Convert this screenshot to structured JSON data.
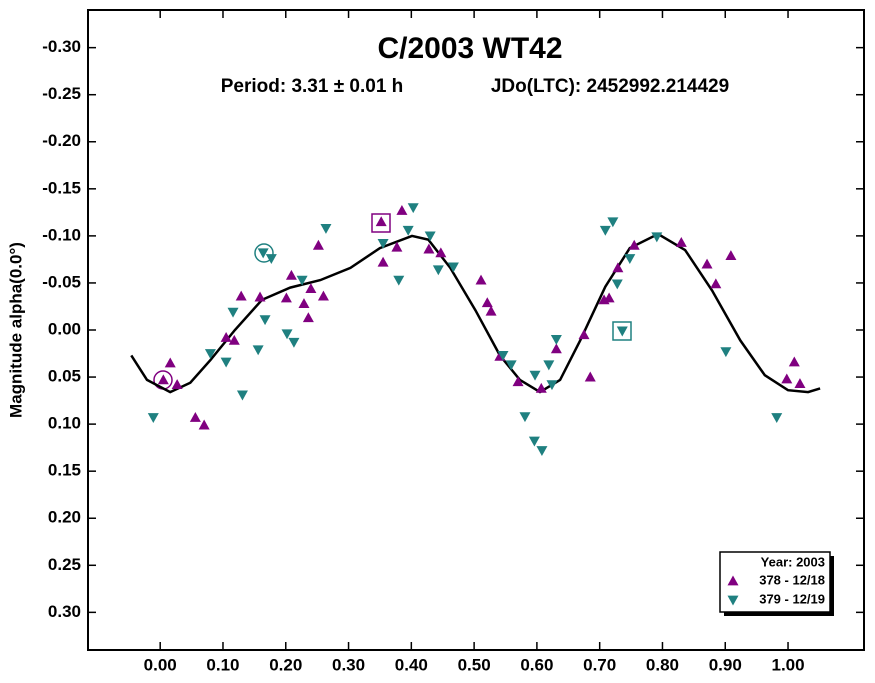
{
  "chart_data": {
    "type": "scatter",
    "title": "C/2003 WT42",
    "subtitle": "Period: 3.31 ± 0.01 h",
    "annotation": "JDo(LTC): 2452992.214429",
    "ylabel": "Magnitude alpha(0.0°)",
    "legend_title": "Year: 2003",
    "legend_position": "lower right",
    "xlim": [
      -0.115,
      1.121
    ],
    "ylim": [
      0.34,
      -0.34
    ],
    "xticks": [
      {
        "value": 0,
        "label": "0.00"
      },
      {
        "value": 0.1,
        "label": "0.10"
      },
      {
        "value": 0.2,
        "label": "0.20"
      },
      {
        "value": 0.3,
        "label": "0.30"
      },
      {
        "value": 0.4,
        "label": "0.40"
      },
      {
        "value": 0.5,
        "label": "0.50"
      },
      {
        "value": 0.6,
        "label": "0.60"
      },
      {
        "value": 0.7,
        "label": "0.70"
      },
      {
        "value": 0.8,
        "label": "0.80"
      },
      {
        "value": 0.9,
        "label": "0.90"
      },
      {
        "value": 1,
        "label": "1.00"
      }
    ],
    "yticks": [
      {
        "value": -0.3,
        "label": "-0.30"
      },
      {
        "value": -0.25,
        "label": "-0.25"
      },
      {
        "value": -0.2,
        "label": "-0.20"
      },
      {
        "value": -0.15,
        "label": "-0.15"
      },
      {
        "value": -0.1,
        "label": "-0.10"
      },
      {
        "value": -0.05,
        "label": "-0.05"
      },
      {
        "value": 0,
        "label": "0.00"
      },
      {
        "value": 0.05,
        "label": "0.05"
      },
      {
        "value": 0.1,
        "label": "0.10"
      },
      {
        "value": 0.15,
        "label": "0.15"
      },
      {
        "value": 0.2,
        "label": "0.20"
      },
      {
        "value": 0.25,
        "label": "0.25"
      },
      {
        "value": 0.3,
        "label": "0.30"
      }
    ],
    "series": [
      {
        "name": "378 - 12/18",
        "color": "#800080",
        "marker": "^",
        "x": [
          0.005,
          0.016,
          0.027,
          0.056,
          0.07,
          0.105,
          0.118,
          0.129,
          0.159,
          0.201,
          0.209,
          0.229,
          0.24,
          0.236,
          0.252,
          0.26,
          0.352,
          0.355,
          0.377,
          0.385,
          0.428,
          0.447,
          0.511,
          0.521,
          0.527,
          0.541,
          0.57,
          0.607,
          0.631,
          0.675,
          0.685,
          0.707,
          0.715,
          0.729,
          0.755,
          0.83,
          0.871,
          0.885,
          0.909,
          0.998,
          1.01,
          1.019
        ],
        "values": [
          0.053,
          0.035,
          0.058,
          0.093,
          0.101,
          0.008,
          0.011,
          -0.036,
          -0.035,
          -0.034,
          -0.058,
          -0.028,
          -0.044,
          -0.013,
          -0.09,
          -0.036,
          -0.115,
          -0.072,
          -0.088,
          -0.127,
          -0.086,
          -0.082,
          -0.053,
          -0.029,
          -0.02,
          0.028,
          0.055,
          0.062,
          0.02,
          0.005,
          0.05,
          -0.032,
          -0.034,
          -0.066,
          -0.09,
          -0.093,
          -0.07,
          -0.049,
          -0.079,
          0.052,
          0.034,
          0.057
        ]
      },
      {
        "name": "379 - 12/19",
        "color": "#1f8080",
        "marker": "v",
        "x": [
          -0.011,
          0.08,
          0.105,
          0.116,
          0.131,
          0.156,
          0.167,
          0.164,
          0.177,
          0.202,
          0.213,
          0.226,
          0.264,
          0.355,
          0.38,
          0.395,
          0.403,
          0.43,
          0.443,
          0.467,
          0.546,
          0.559,
          0.581,
          0.596,
          0.608,
          0.597,
          0.619,
          0.624,
          0.631,
          0.709,
          0.721,
          0.728,
          0.736,
          0.748,
          0.791,
          0.901,
          0.982
        ],
        "values": [
          0.093,
          0.025,
          0.034,
          -0.019,
          0.069,
          0.021,
          -0.011,
          -0.082,
          -0.076,
          0.004,
          0.013,
          -0.053,
          -0.108,
          -0.092,
          -0.053,
          -0.106,
          -0.13,
          -0.1,
          -0.064,
          -0.067,
          0.027,
          0.037,
          0.092,
          0.118,
          0.128,
          0.048,
          0.037,
          0.058,
          0.01,
          -0.106,
          -0.115,
          -0.049,
          0.001,
          -0.076,
          -0.099,
          0.023,
          0.093
        ]
      }
    ],
    "fit": {
      "color": "#000000",
      "x": [
        -0.046,
        -0.021,
        0.016,
        0.048,
        0.08,
        0.119,
        0.162,
        0.207,
        0.255,
        0.303,
        0.35,
        0.401,
        0.427,
        0.462,
        0.502,
        0.541,
        0.573,
        0.605,
        0.637,
        0.669,
        0.709,
        0.748,
        0.793,
        0.836,
        0.879,
        0.924,
        0.963,
        1.0,
        1.032,
        1.051
      ],
      "values": [
        0.027,
        0.053,
        0.066,
        0.056,
        0.032,
        0,
        -0.032,
        -0.045,
        -0.053,
        -0.066,
        -0.087,
        -0.1,
        -0.096,
        -0.066,
        -0.021,
        0.027,
        0.053,
        0.066,
        0.053,
        0.011,
        -0.046,
        -0.087,
        -0.102,
        -0.085,
        -0.042,
        0.011,
        0.048,
        0.064,
        0.066,
        0.062
      ]
    }
  }
}
